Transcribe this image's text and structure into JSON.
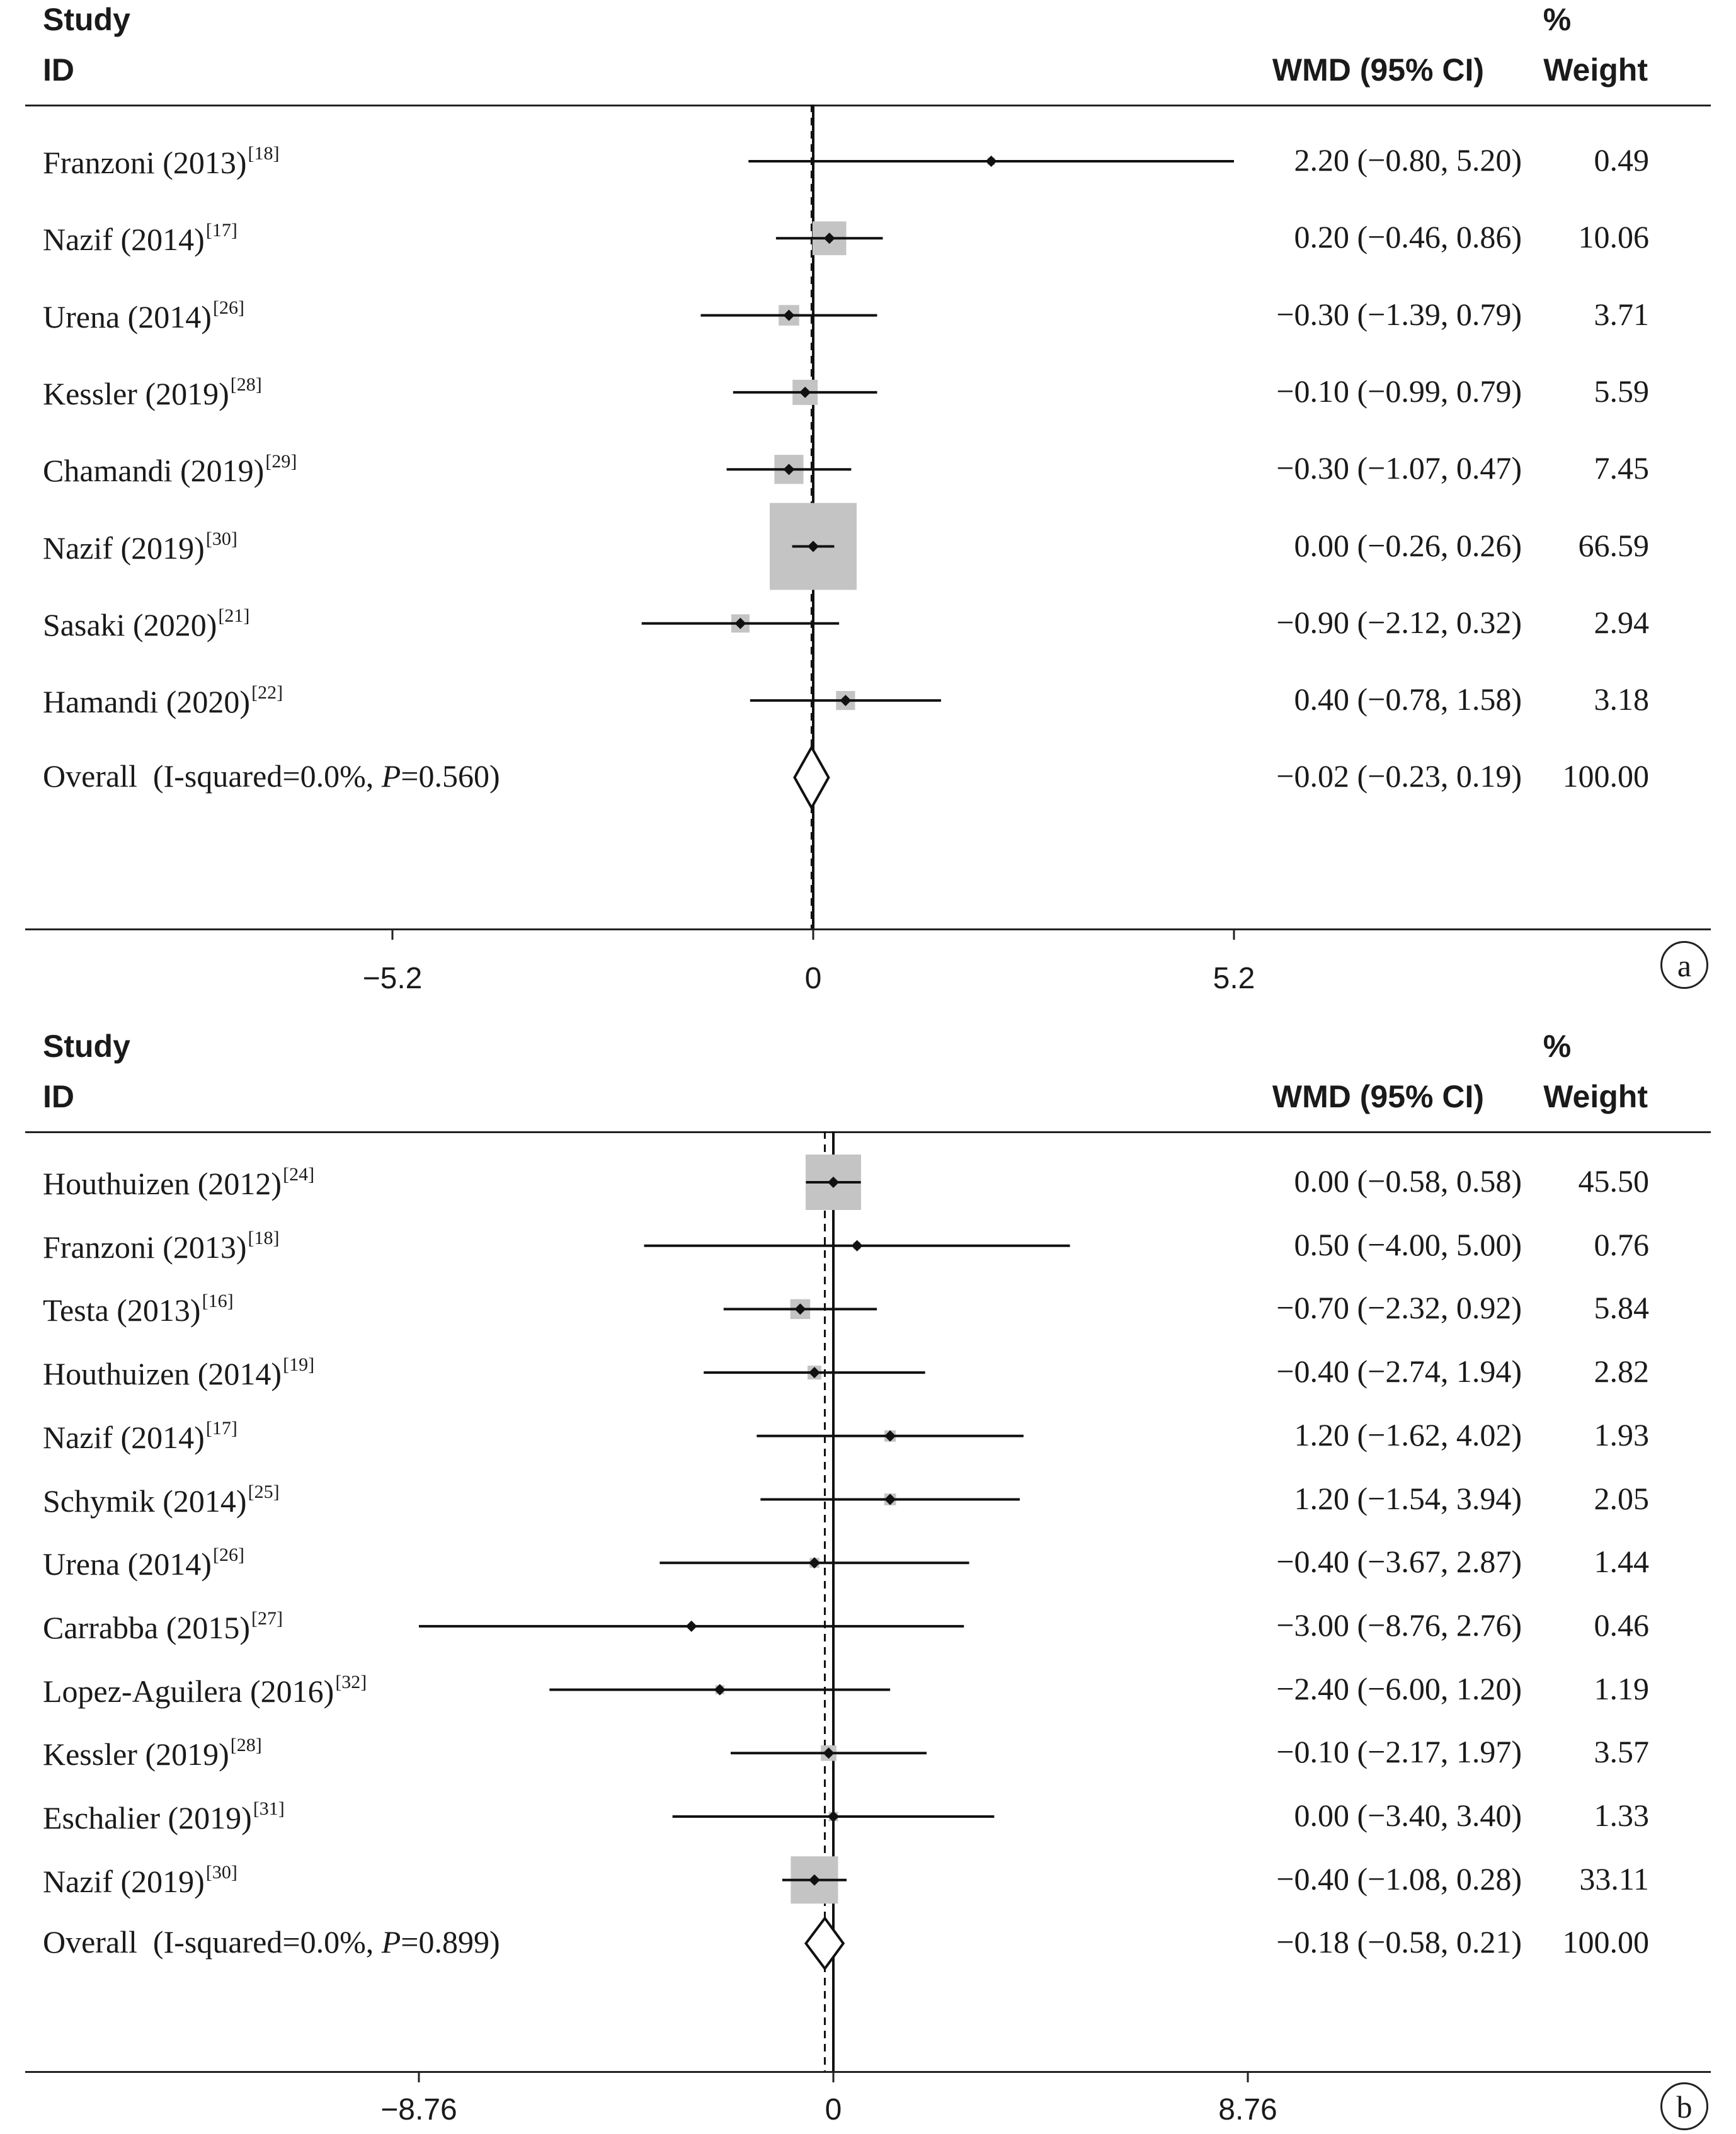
{
  "chart_data": [
    {
      "type": "forest",
      "panel_label": "a",
      "header": {
        "study": "Study",
        "id": "ID",
        "effect": "WMD (95% CI)",
        "pct": "%",
        "weight": "Weight"
      },
      "xlim": [
        -5.2,
        5.2
      ],
      "ticks": [
        {
          "value": -5.2,
          "label": "−5.2"
        },
        {
          "value": 0,
          "label": "0"
        },
        {
          "value": 5.2,
          "label": "5.2"
        }
      ],
      "pooled": -0.02,
      "studies": [
        {
          "name": "Franzoni (2013)",
          "ref": "[18]",
          "est": 2.2,
          "lo": -0.8,
          "hi": 5.2,
          "ci_text": "2.20 (−0.80, 5.20)",
          "weight": 0.49,
          "weight_text": "0.49"
        },
        {
          "name": "Nazif (2014)",
          "ref": "[17]",
          "est": 0.2,
          "lo": -0.46,
          "hi": 0.86,
          "ci_text": "0.20 (−0.46, 0.86)",
          "weight": 10.06,
          "weight_text": "10.06"
        },
        {
          "name": "Urena (2014)",
          "ref": "[26]",
          "est": -0.3,
          "lo": -1.39,
          "hi": 0.79,
          "ci_text": "−0.30 (−1.39, 0.79)",
          "weight": 3.71,
          "weight_text": "3.71"
        },
        {
          "name": "Kessler (2019)",
          "ref": "[28]",
          "est": -0.1,
          "lo": -0.99,
          "hi": 0.79,
          "ci_text": "−0.10 (−0.99, 0.79)",
          "weight": 5.59,
          "weight_text": "5.59"
        },
        {
          "name": "Chamandi (2019)",
          "ref": "[29]",
          "est": -0.3,
          "lo": -1.07,
          "hi": 0.47,
          "ci_text": "−0.30 (−1.07, 0.47)",
          "weight": 7.45,
          "weight_text": "7.45"
        },
        {
          "name": "Nazif (2019)",
          "ref": "[30]",
          "est": 0.0,
          "lo": -0.26,
          "hi": 0.26,
          "ci_text": "0.00 (−0.26, 0.26)",
          "weight": 66.59,
          "weight_text": "66.59"
        },
        {
          "name": "Sasaki (2020)",
          "ref": "[21]",
          "est": -0.9,
          "lo": -2.12,
          "hi": 0.32,
          "ci_text": "−0.90 (−2.12, 0.32)",
          "weight": 2.94,
          "weight_text": "2.94"
        },
        {
          "name": "Hamandi (2020)",
          "ref": "[22]",
          "est": 0.4,
          "lo": -0.78,
          "hi": 1.58,
          "ci_text": "0.40 (−0.78, 1.58)",
          "weight": 3.18,
          "weight_text": "3.18"
        }
      ],
      "overall": {
        "label_pre": "Overall  (I-squared=0.0%, ",
        "label_p": "P",
        "label_post": "=0.560)",
        "est": -0.02,
        "lo": -0.23,
        "hi": 0.19,
        "ci_text": "−0.02 (−0.23, 0.19)",
        "weight_text": "100.00"
      }
    },
    {
      "type": "forest",
      "panel_label": "b",
      "header": {
        "study": "Study",
        "id": "ID",
        "effect": "WMD (95% CI)",
        "pct": "%",
        "weight": "Weight"
      },
      "xlim": [
        -8.76,
        8.76
      ],
      "ticks": [
        {
          "value": -8.76,
          "label": "−8.76"
        },
        {
          "value": 0,
          "label": "0"
        },
        {
          "value": 8.76,
          "label": "8.76"
        }
      ],
      "pooled": -0.18,
      "studies": [
        {
          "name": "Houthuizen (2012)",
          "ref": "[24]",
          "est": 0.0,
          "lo": -0.58,
          "hi": 0.58,
          "ci_text": "0.00 (−0.58, 0.58)",
          "weight": 45.5,
          "weight_text": "45.50"
        },
        {
          "name": "Franzoni (2013)",
          "ref": "[18]",
          "est": 0.5,
          "lo": -4.0,
          "hi": 5.0,
          "ci_text": "0.50 (−4.00, 5.00)",
          "weight": 0.76,
          "weight_text": "0.76"
        },
        {
          "name": "Testa (2013)",
          "ref": "[16]",
          "est": -0.7,
          "lo": -2.32,
          "hi": 0.92,
          "ci_text": "−0.70 (−2.32, 0.92)",
          "weight": 5.84,
          "weight_text": "5.84"
        },
        {
          "name": "Houthuizen (2014)",
          "ref": "[19]",
          "est": -0.4,
          "lo": -2.74,
          "hi": 1.94,
          "ci_text": "−0.40 (−2.74, 1.94)",
          "weight": 2.82,
          "weight_text": "2.82"
        },
        {
          "name": "Nazif (2014)",
          "ref": "[17]",
          "est": 1.2,
          "lo": -1.62,
          "hi": 4.02,
          "ci_text": "1.20 (−1.62, 4.02)",
          "weight": 1.93,
          "weight_text": "1.93"
        },
        {
          "name": "Schymik (2014)",
          "ref": "[25]",
          "est": 1.2,
          "lo": -1.54,
          "hi": 3.94,
          "ci_text": "1.20 (−1.54, 3.94)",
          "weight": 2.05,
          "weight_text": "2.05"
        },
        {
          "name": "Urena (2014)",
          "ref": "[26]",
          "est": -0.4,
          "lo": -3.67,
          "hi": 2.87,
          "ci_text": "−0.40 (−3.67, 2.87)",
          "weight": 1.44,
          "weight_text": "1.44"
        },
        {
          "name": "Carrabba (2015)",
          "ref": "[27]",
          "est": -3.0,
          "lo": -8.76,
          "hi": 2.76,
          "ci_text": "−3.00 (−8.76, 2.76)",
          "weight": 0.46,
          "weight_text": "0.46"
        },
        {
          "name": "Lopez-Aguilera (2016)",
          "ref": "[32]",
          "est": -2.4,
          "lo": -6.0,
          "hi": 1.2,
          "ci_text": "−2.40 (−6.00, 1.20)",
          "weight": 1.19,
          "weight_text": "1.19"
        },
        {
          "name": "Kessler (2019)",
          "ref": "[28]",
          "est": -0.1,
          "lo": -2.17,
          "hi": 1.97,
          "ci_text": "−0.10 (−2.17, 1.97)",
          "weight": 3.57,
          "weight_text": "3.57"
        },
        {
          "name": "Eschalier (2019)",
          "ref": "[31]",
          "est": 0.0,
          "lo": -3.4,
          "hi": 3.4,
          "ci_text": "0.00 (−3.40, 3.40)",
          "weight": 1.33,
          "weight_text": "1.33"
        },
        {
          "name": "Nazif (2019)",
          "ref": "[30]",
          "est": -0.4,
          "lo": -1.08,
          "hi": 0.28,
          "ci_text": "−0.40 (−1.08, 0.28)",
          "weight": 33.11,
          "weight_text": "33.11"
        }
      ],
      "overall": {
        "label_pre": "Overall  (I-squared=0.0%, ",
        "label_p": "P",
        "label_post": "=0.899)",
        "est": -0.18,
        "lo": -0.58,
        "hi": 0.21,
        "ci_text": "−0.18 (−0.58, 0.21)",
        "weight_text": "100.00"
      }
    }
  ]
}
